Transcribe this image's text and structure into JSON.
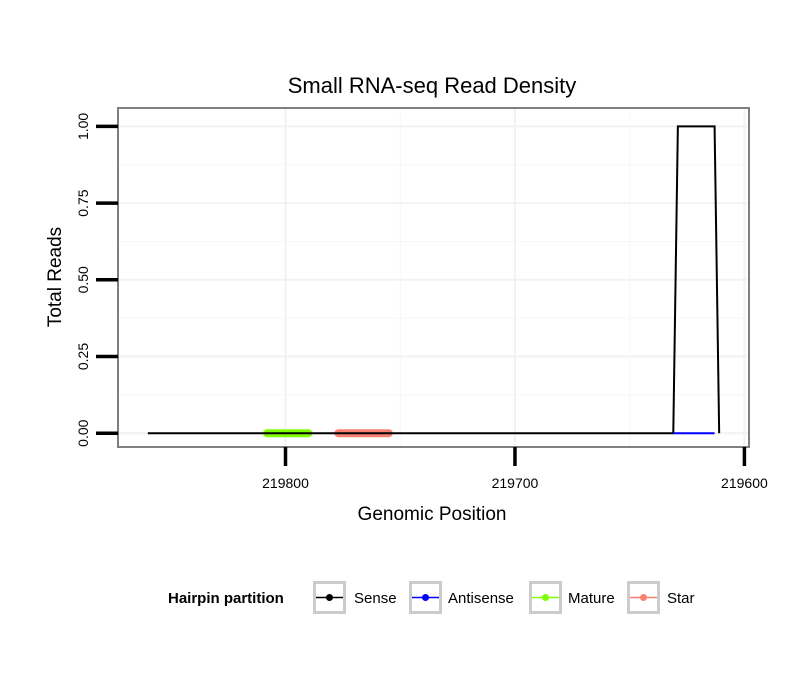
{
  "chart_data": {
    "type": "line",
    "title": "Small RNA-seq Read Density",
    "xlabel": "Genomic Position",
    "ylabel": "Total Reads",
    "xlim": [
      219873,
      219598
    ],
    "x_reversed": true,
    "ylim": [
      -0.045,
      1.06
    ],
    "x_ticks": [
      219800,
      219700,
      219600
    ],
    "y_ticks": [
      0,
      0.25,
      0.5,
      0.75,
      1.0
    ],
    "x_tick_labels": [
      "219800",
      "219700",
      "219600"
    ],
    "y_tick_labels": [
      "0.00",
      "0.25",
      "0.50",
      "0.75",
      "1.00"
    ],
    "grid": true,
    "legend": {
      "title": "Hairpin partition",
      "position": "bottom",
      "entries": [
        "Sense",
        "Antisense",
        "Mature",
        "Star"
      ]
    },
    "series": [
      {
        "name": "Sense",
        "color": "#000000",
        "x": [
          219860,
          219631,
          219629,
          219613,
          219611
        ],
        "y": [
          0,
          0,
          1,
          1,
          0
        ]
      },
      {
        "name": "Antisense",
        "color": "#0000ff",
        "x": [
          219631,
          219613
        ],
        "y": [
          0,
          0
        ]
      },
      {
        "name": "Mature",
        "color": "#7fff00",
        "x": [
          219808,
          219790
        ],
        "y": [
          0,
          0
        ]
      },
      {
        "name": "Star",
        "color": "#fa8072",
        "x": [
          219777,
          219755
        ],
        "y": [
          0,
          0
        ]
      }
    ]
  }
}
